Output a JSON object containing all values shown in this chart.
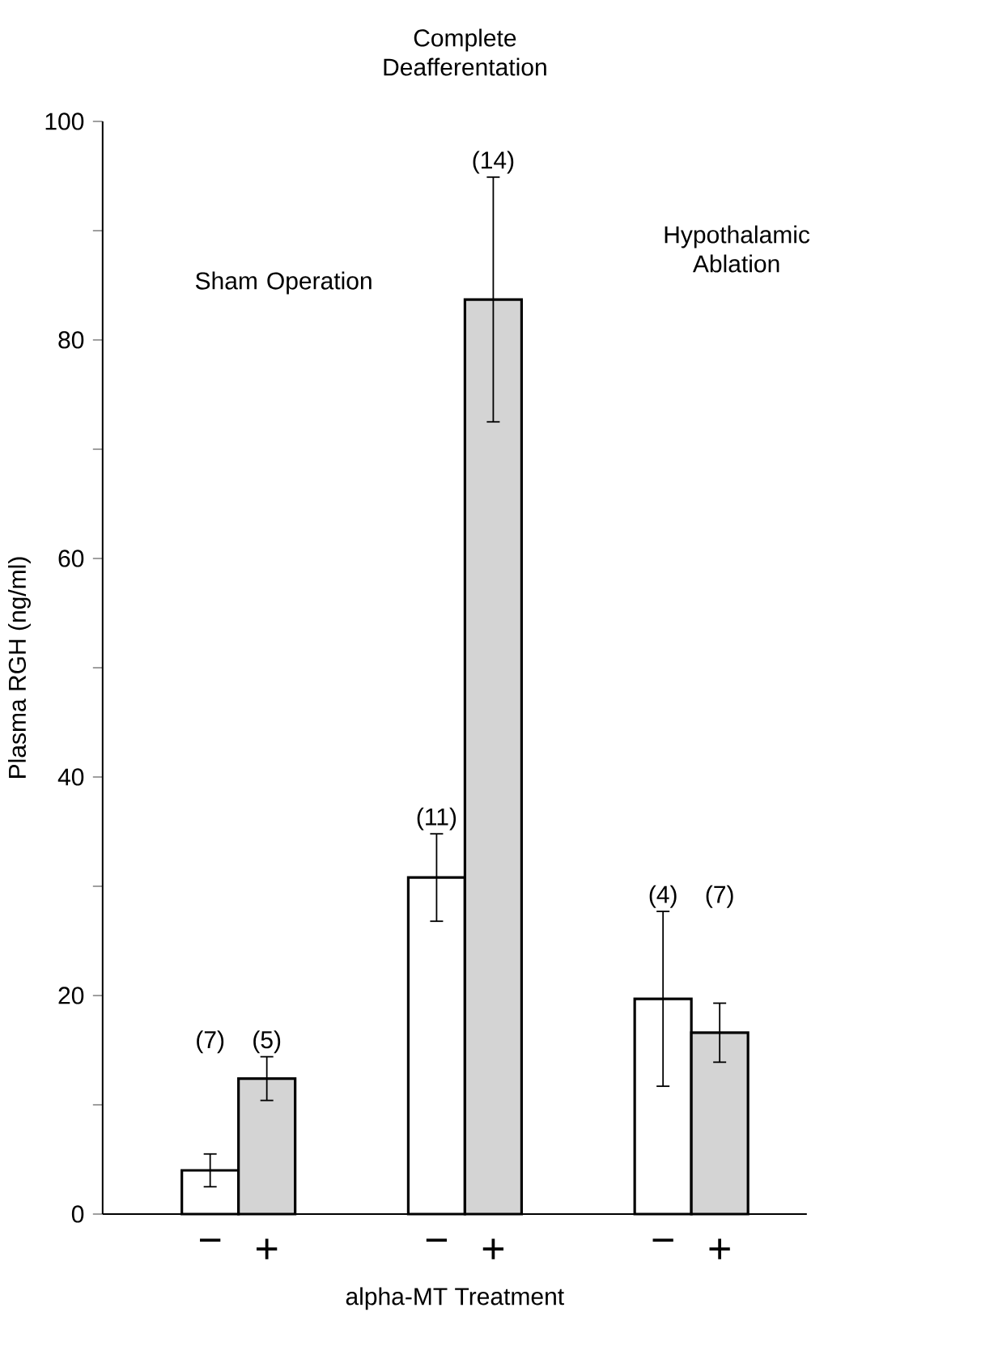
{
  "chart_data": {
    "type": "bar",
    "categories": [
      "Sham Operation",
      "Complete Deafferentation",
      "Hypothalamic Ablation"
    ],
    "series": [
      {
        "name": "−",
        "color": "#ffffff",
        "values": [
          4.0,
          30.8,
          19.7
        ],
        "errors": [
          1.5,
          4.0,
          8.0
        ]
      },
      {
        "name": "+",
        "color": "#d4d4d4",
        "values": [
          12.4,
          83.7,
          16.6
        ],
        "errors": [
          2.0,
          11.2,
          2.7
        ]
      }
    ],
    "xlabel": "alpha-MT Treatment",
    "ylabel": "Plasma RGH (ng/ml)",
    "ylim": [
      0,
      100
    ],
    "yticks": [
      0,
      20,
      40,
      60,
      80,
      100
    ],
    "annotations": [
      "(7)",
      "(5)",
      "(11)",
      "(14)",
      "(4)",
      "(7)"
    ],
    "grid": false
  }
}
